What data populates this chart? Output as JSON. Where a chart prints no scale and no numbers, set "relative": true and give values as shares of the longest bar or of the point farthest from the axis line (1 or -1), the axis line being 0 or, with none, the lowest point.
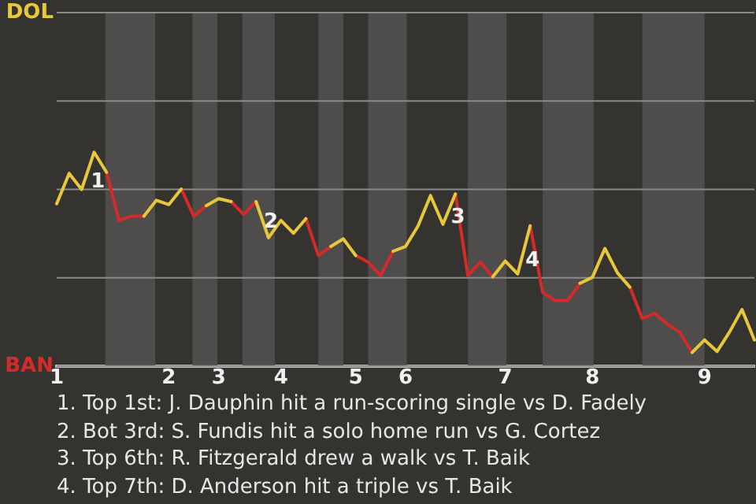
{
  "chart_data": {
    "type": "line",
    "relative": true,
    "categories": [
      "1",
      null,
      null,
      null,
      null,
      null,
      null,
      null,
      null,
      "2",
      null,
      null,
      null,
      "3",
      null,
      null,
      null,
      null,
      "4",
      null,
      null,
      null,
      null,
      null,
      "5",
      null,
      null,
      null,
      "6",
      null,
      null,
      null,
      null,
      null,
      null,
      null,
      "7",
      null,
      null,
      null,
      null,
      null,
      null,
      "8",
      null,
      null,
      null,
      null,
      null,
      null,
      null,
      null,
      "9",
      null,
      null,
      null,
      null
    ],
    "series": [
      {
        "color": "#e8c83a",
        "values": [
          0.759,
          0.901,
          0.826,
          1,
          0.906,
          null,
          null,
          0.701,
          0.775,
          0.755,
          0.828,
          null,
          0.75,
          0.783,
          0.769,
          null,
          0.769,
          0.6,
          0.681,
          0.621,
          0.689,
          null,
          0.559,
          0.595,
          0.517,
          null,
          null,
          0.537,
          0.559,
          0.655,
          0.797,
          0.663,
          0.805,
          null,
          null,
          0.417,
          0.491,
          0.431,
          0.656,
          null,
          null,
          null,
          0.387,
          0.415,
          0.55,
          0.436,
          0.369,
          null,
          null,
          null,
          null,
          0.063,
          0.122,
          0.068,
          0.159,
          0.264,
          0.122
        ]
      },
      {
        "color": "#d42a2a",
        "values": [
          null,
          null,
          null,
          null,
          0.906,
          0.681,
          0.701,
          0.701,
          null,
          null,
          0.828,
          0.701,
          0.75,
          null,
          0.769,
          0.709,
          0.769,
          null,
          null,
          null,
          0.689,
          0.517,
          0.559,
          null,
          0.517,
          0.486,
          0.423,
          0.537,
          null,
          null,
          null,
          null,
          0.805,
          0.423,
          0.486,
          0.417,
          null,
          null,
          0.656,
          0.345,
          0.306,
          0.306,
          0.387,
          null,
          null,
          null,
          0.369,
          0.223,
          0.246,
          0.197,
          0.159,
          0.063,
          null,
          null,
          null,
          null,
          null
        ]
      }
    ],
    "legend": false,
    "marker": "none",
    "ref_lines": [
      {
        "axis": "y",
        "value": 1.653,
        "label": "DOL"
      },
      {
        "axis": "y",
        "value": 1.24
      },
      {
        "axis": "y",
        "value": 0.826
      },
      {
        "axis": "y",
        "value": 0.413
      },
      {
        "axis": "y",
        "value": 0,
        "label": "BAN"
      }
    ],
    "annotations": [
      "1",
      "2",
      "3",
      "4",
      "1. Top 1st: J. Dauphin hit a run-scoring single vs D. Fadely",
      "2. Bot 3rd: S. Fundis hit a solo home run vs G. Cortez",
      "3. Top 6th: R. Fitzgerald drew a walk vs T. Baik",
      "4. Top 7th: D. Anderson hit a triple vs T. Baik"
    ]
  }
}
